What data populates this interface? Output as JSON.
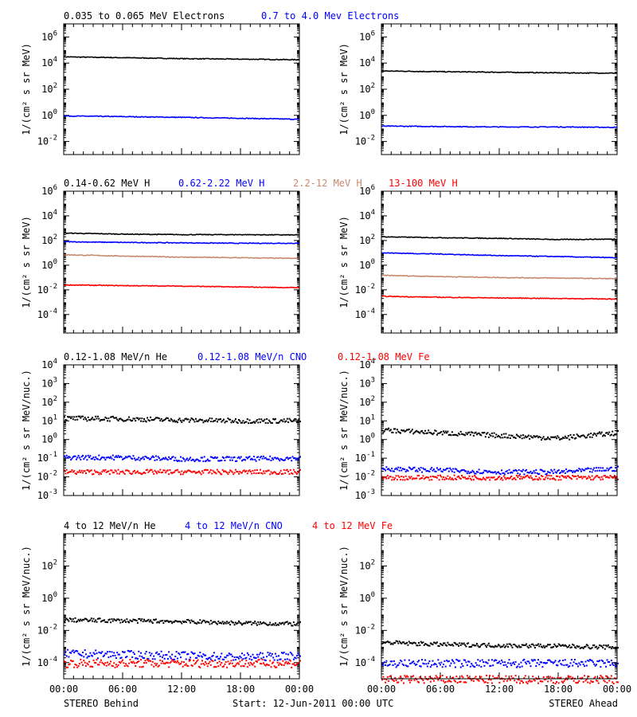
{
  "footer": {
    "left": "STEREO Behind",
    "center": "Start: 12-Jun-2011 00:00 UTC",
    "right": "STEREO Ahead"
  },
  "x_ticks": [
    "00:00",
    "06:00",
    "12:00",
    "18:00",
    "00:00"
  ],
  "colors": {
    "black": "#000000",
    "blue": "#0000ff",
    "tan": "#c88a6e",
    "red": "#ff0000"
  },
  "rows": [
    {
      "legend": [
        {
          "text": "0.035 to 0.065 MeV Electrons",
          "color": "#000000"
        },
        {
          "text": "0.7 to 4.0 Mev Electrons",
          "color": "#0000ff"
        }
      ],
      "ylabel": "1/(cm² s sr MeV)",
      "ylog": [
        -3,
        7
      ],
      "ticks": [
        -2,
        0,
        2,
        4,
        6
      ]
    },
    {
      "legend": [
        {
          "text": "0.14-0.62 MeV H",
          "color": "#000000"
        },
        {
          "text": "0.62-2.22 MeV H",
          "color": "#0000ff"
        },
        {
          "text": "2.2-12 MeV H",
          "color": "#c88a6e"
        },
        {
          "text": "13-100 MeV H",
          "color": "#ff0000"
        }
      ],
      "ylabel": "1/(cm² s sr MeV)",
      "ylog": [
        -5.5,
        6
      ],
      "ticks": [
        -4,
        -2,
        0,
        2,
        4,
        6
      ]
    },
    {
      "legend": [
        {
          "text": "0.12-1.08 MeV/n He",
          "color": "#000000"
        },
        {
          "text": "0.12-1.08 MeV/n CNO",
          "color": "#0000ff"
        },
        {
          "text": "0.12-1.08 MeV Fe",
          "color": "#ff0000"
        }
      ],
      "ylabel": "1/(cm² s sr MeV/nuc.)",
      "ylog": [
        -3,
        4
      ],
      "ticks": [
        -3,
        -2,
        -1,
        0,
        1,
        2,
        3,
        4
      ]
    },
    {
      "legend": [
        {
          "text": "4 to 12 MeV/n He",
          "color": "#000000"
        },
        {
          "text": "4 to 12 MeV/n CNO",
          "color": "#0000ff"
        },
        {
          "text": "4 to 12 MeV Fe",
          "color": "#ff0000"
        }
      ],
      "ylabel": "1/(cm² s sr MeV/nuc.)",
      "ylog": [
        -5,
        4
      ],
      "ticks": [
        -4,
        -2,
        0,
        2
      ]
    }
  ],
  "chart_data": [
    {
      "type": "line",
      "spacecraft": "STEREO Behind",
      "panel": "electrons",
      "xlabel": "",
      "ylabel": "1/(cm² s sr MeV)",
      "y_scale": "log",
      "ylim": [
        0.001,
        10000000
      ],
      "x": [
        "00:00",
        "06:00",
        "12:00",
        "18:00",
        "00:00"
      ],
      "series": [
        {
          "name": "0.035 to 0.065 MeV Electrons",
          "color": "#000000",
          "values": [
            30000,
            26000,
            22000,
            20000,
            18000
          ]
        },
        {
          "name": "0.7 to 4.0 Mev Electrons",
          "color": "#0000ff",
          "values": [
            0.9,
            0.8,
            0.7,
            0.6,
            0.5
          ]
        }
      ]
    },
    {
      "type": "line",
      "spacecraft": "STEREO Ahead",
      "panel": "electrons",
      "xlabel": "",
      "ylabel": "1/(cm² s sr MeV)",
      "y_scale": "log",
      "ylim": [
        0.001,
        10000000
      ],
      "x": [
        "00:00",
        "06:00",
        "12:00",
        "18:00",
        "00:00"
      ],
      "series": [
        {
          "name": "0.035 to 0.065 MeV Electrons",
          "color": "#000000",
          "values": [
            2500,
            2200,
            2000,
            1800,
            1700
          ]
        },
        {
          "name": "0.7 to 4.0 Mev Electrons",
          "color": "#0000ff",
          "values": [
            0.15,
            0.14,
            0.13,
            0.13,
            0.12
          ]
        }
      ]
    },
    {
      "type": "line",
      "spacecraft": "STEREO Behind",
      "panel": "protons",
      "xlabel": "",
      "ylabel": "1/(cm² s sr MeV)",
      "y_scale": "log",
      "ylim": [
        3e-06,
        1000000
      ],
      "x": [
        "00:00",
        "06:00",
        "12:00",
        "18:00",
        "00:00"
      ],
      "series": [
        {
          "name": "0.14-0.62 MeV H",
          "color": "#000000",
          "values": [
            400,
            330,
            300,
            300,
            280
          ]
        },
        {
          "name": "0.62-2.22 MeV H",
          "color": "#0000ff",
          "values": [
            80,
            70,
            65,
            60,
            60
          ]
        },
        {
          "name": "2.2-12 MeV H",
          "color": "#c88a6e",
          "values": [
            7,
            5.5,
            4.5,
            4,
            3.5
          ]
        },
        {
          "name": "13-100 MeV H",
          "color": "#ff0000",
          "values": [
            0.025,
            0.022,
            0.02,
            0.017,
            0.015
          ]
        }
      ]
    },
    {
      "type": "line",
      "spacecraft": "STEREO Ahead",
      "panel": "protons",
      "xlabel": "",
      "ylabel": "1/(cm² s sr MeV)",
      "y_scale": "log",
      "ylim": [
        3e-06,
        1000000
      ],
      "x": [
        "00:00",
        "06:00",
        "12:00",
        "18:00",
        "00:00"
      ],
      "series": [
        {
          "name": "0.14-0.62 MeV H",
          "color": "#000000",
          "values": [
            200,
            170,
            150,
            120,
            130
          ]
        },
        {
          "name": "0.62-2.22 MeV H",
          "color": "#0000ff",
          "values": [
            10,
            8,
            6,
            5,
            4
          ]
        },
        {
          "name": "2.2-12 MeV H",
          "color": "#c88a6e",
          "values": [
            0.15,
            0.12,
            0.1,
            0.09,
            0.08
          ]
        },
        {
          "name": "13-100 MeV H",
          "color": "#ff0000",
          "values": [
            0.003,
            0.0025,
            0.0022,
            0.002,
            0.0018
          ]
        }
      ]
    },
    {
      "type": "scatter",
      "spacecraft": "STEREO Behind",
      "panel": "heavy ions 0.12-1.08",
      "xlabel": "",
      "ylabel": "1/(cm² s sr MeV/nuc.)",
      "y_scale": "log",
      "ylim": [
        0.001,
        10000
      ],
      "x": [
        "00:00",
        "06:00",
        "12:00",
        "18:00",
        "00:00"
      ],
      "series": [
        {
          "name": "0.12-1.08 MeV/n He",
          "color": "#000000",
          "values": [
            15,
            14,
            12,
            11,
            11
          ]
        },
        {
          "name": "0.12-1.08 MeV/n CNO",
          "color": "#0000ff",
          "values": [
            0.12,
            0.12,
            0.1,
            0.1,
            0.11
          ]
        },
        {
          "name": "0.12-1.08 MeV Fe",
          "color": "#ff0000",
          "values": [
            0.02,
            0.02,
            0.02,
            0.02,
            0.02
          ]
        }
      ]
    },
    {
      "type": "scatter",
      "spacecraft": "STEREO Ahead",
      "panel": "heavy ions 0.12-1.08",
      "xlabel": "",
      "ylabel": "1/(cm² s sr MeV/nuc.)",
      "y_scale": "log",
      "ylim": [
        0.001,
        10000
      ],
      "x": [
        "00:00",
        "06:00",
        "12:00",
        "18:00",
        "00:00"
      ],
      "series": [
        {
          "name": "0.12-1.08 MeV/n He",
          "color": "#000000",
          "values": [
            3.5,
            2.5,
            1.8,
            1.3,
            2.5
          ]
        },
        {
          "name": "0.12-1.08 MeV/n CNO",
          "color": "#0000ff",
          "values": [
            0.03,
            0.025,
            0.02,
            0.02,
            0.03
          ]
        },
        {
          "name": "0.12-1.08 MeV Fe",
          "color": "#ff0000",
          "values": [
            0.01,
            0.01,
            0.01,
            0.01,
            0.01
          ]
        }
      ]
    },
    {
      "type": "scatter",
      "spacecraft": "STEREO Behind",
      "panel": "heavy ions 4-12",
      "xlabel": "",
      "ylabel": "1/(cm² s sr MeV/nuc.)",
      "y_scale": "log",
      "ylim": [
        1e-05,
        10000
      ],
      "x": [
        "00:00",
        "06:00",
        "12:00",
        "18:00",
        "00:00"
      ],
      "series": [
        {
          "name": "4 to 12 MeV/n He",
          "color": "#000000",
          "values": [
            0.05,
            0.045,
            0.04,
            0.032,
            0.028
          ]
        },
        {
          "name": "4 to 12 MeV/n CNO",
          "color": "#0000ff",
          "values": [
            0.0004,
            0.00035,
            0.0003,
            0.00025,
            0.0003
          ]
        },
        {
          "name": "4 to 12 MeV Fe",
          "color": "#ff0000",
          "values": [
            0.0001,
            0.0001,
            0.0001,
            0.0001,
            0.0001
          ]
        }
      ]
    },
    {
      "type": "scatter",
      "spacecraft": "STEREO Ahead",
      "panel": "heavy ions 4-12",
      "xlabel": "",
      "ylabel": "1/(cm² s sr MeV/nuc.)",
      "y_scale": "log",
      "ylim": [
        1e-05,
        10000
      ],
      "x": [
        "00:00",
        "06:00",
        "12:00",
        "18:00",
        "00:00"
      ],
      "series": [
        {
          "name": "4 to 12 MeV/n He",
          "color": "#000000",
          "values": [
            0.002,
            0.0015,
            0.0013,
            0.0012,
            0.001
          ]
        },
        {
          "name": "4 to 12 MeV/n CNO",
          "color": "#0000ff",
          "values": [
            0.0001,
            0.0001,
            0.0001,
            0.0001,
            0.0001
          ]
        },
        {
          "name": "4 to 12 MeV Fe",
          "color": "#ff0000",
          "values": [
            1e-05,
            1e-05,
            1e-05,
            1e-05,
            1e-05
          ]
        }
      ]
    }
  ]
}
